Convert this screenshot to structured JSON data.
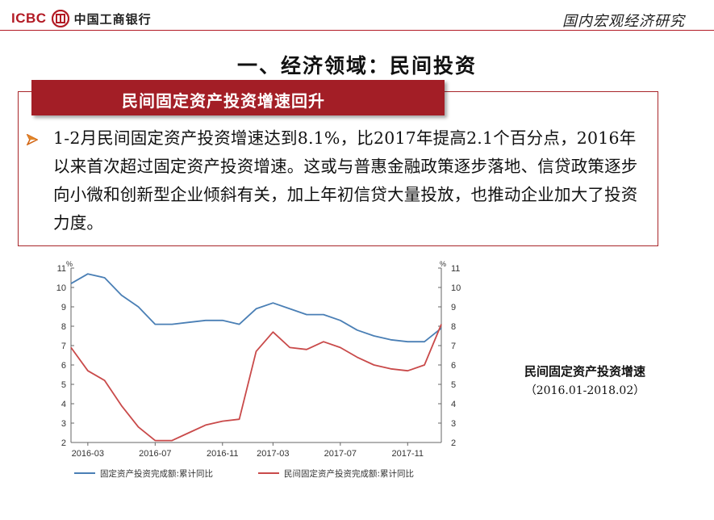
{
  "header": {
    "logo_latin": "ICBC",
    "logo_cn": "中国工商银行",
    "brand_title": "国内宏观经济研究",
    "accent": "#b31b25"
  },
  "slide": {
    "title": "一、经济领域：民间投资",
    "banner": "民间固定资产投资增速回升",
    "bullet": "1-2月民间固定资产投资增速达到8.1%，比2017年提高2.1个百分点，2016年以来首次超过固定资产投资增速。这或与普惠金融政策逐步落地、信贷政策逐步向小微和创新型企业倾斜有关，加上年初信贷大量投放，也推动企业加大了投资力度。"
  },
  "side_caption": {
    "title": "民间固定资产投资增速",
    "period": "（2016.01-2018.02）"
  },
  "chart_data": {
    "type": "line",
    "x": [
      "2016-02",
      "2016-03",
      "2016-04",
      "2016-05",
      "2016-06",
      "2016-07",
      "2016-08",
      "2016-09",
      "2016-10",
      "2016-11",
      "2016-12",
      "2017-02",
      "2017-03",
      "2017-04",
      "2017-05",
      "2017-06",
      "2017-07",
      "2017-08",
      "2017-09",
      "2017-10",
      "2017-11",
      "2017-12",
      "2018-02"
    ],
    "x_tick_labels": [
      "2016-03",
      "2016-07",
      "2016-11",
      "2017-03",
      "2017-07",
      "2017-11"
    ],
    "x_tick_values": [
      "2016-03",
      "2016-07",
      "2016-11",
      "2017-03",
      "2017-07",
      "2017-11"
    ],
    "series": [
      {
        "name": "固定资产投资完成额:累计同比",
        "color": "#4a7fb5",
        "axis": "left",
        "values": [
          10.2,
          10.7,
          10.5,
          9.6,
          9.0,
          8.1,
          8.1,
          8.2,
          8.3,
          8.3,
          8.1,
          8.9,
          9.2,
          8.9,
          8.6,
          8.6,
          8.3,
          7.8,
          7.5,
          7.3,
          7.2,
          7.2,
          7.9
        ]
      },
      {
        "name": "民间固定资产投资完成额:累计同比",
        "color": "#c94a4a",
        "axis": "right",
        "values": [
          6.9,
          5.7,
          5.2,
          3.9,
          2.8,
          2.1,
          2.1,
          2.5,
          2.9,
          3.1,
          3.2,
          6.7,
          7.7,
          6.9,
          6.8,
          7.2,
          6.9,
          6.4,
          6.0,
          5.8,
          5.7,
          6.0,
          8.1
        ]
      }
    ],
    "y_left": {
      "unit": "%",
      "ticks": [
        2,
        3,
        4,
        5,
        6,
        7,
        8,
        9,
        10,
        11
      ],
      "ylim": [
        2,
        11
      ]
    },
    "y_right": {
      "unit": "%",
      "ticks": [
        2,
        3,
        4,
        5,
        6,
        7,
        8,
        9,
        10,
        11
      ],
      "ylim": [
        2,
        11
      ]
    },
    "legend_position": "bottom",
    "grid": false
  }
}
